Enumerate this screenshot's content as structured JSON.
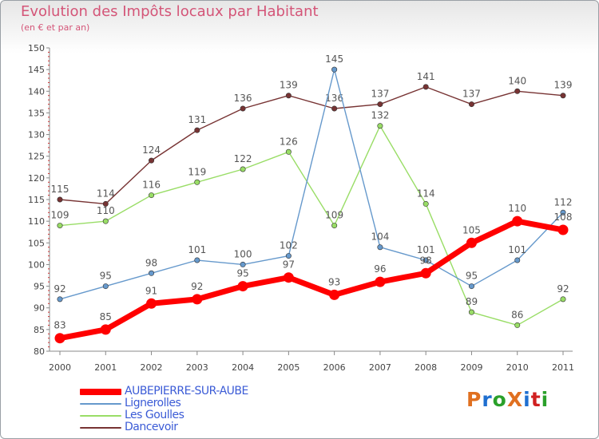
{
  "title": "Evolution des Impôts locaux par Habitant",
  "subtitle": "(en € et par an)",
  "logo_text": "ProXiti",
  "logo_colors": [
    "#e07020",
    "#1f6fd0",
    "#2aa02a",
    "#e07020",
    "#1f6fd0",
    "#d02020",
    "#2aa02a"
  ],
  "chart_data": {
    "type": "line",
    "title": "Evolution des Impôts locaux par Habitant",
    "ylabel": "(en € et par an)",
    "xlabel": "",
    "categories": [
      "2000",
      "2001",
      "2002",
      "2003",
      "2004",
      "2005",
      "2006",
      "2007",
      "2008",
      "2009",
      "2010",
      "2011"
    ],
    "ylim": [
      80,
      150
    ],
    "ytick_step": 5,
    "grid": false,
    "legend_position": "bottom-left",
    "series": [
      {
        "name": "AUBEPIERRE-SUR-AUBE",
        "color": "#ff0000",
        "values": [
          83,
          85,
          91,
          92,
          95,
          97,
          93,
          96,
          98,
          105,
          110,
          108
        ]
      },
      {
        "name": "Lignerolles",
        "color": "#6699cc",
        "values": [
          92,
          95,
          98,
          101,
          100,
          102,
          145,
          104,
          101,
          95,
          101,
          112
        ]
      },
      {
        "name": "Les Goulles",
        "color": "#99dd66",
        "values": [
          109,
          110,
          116,
          119,
          122,
          126,
          109,
          132,
          114,
          89,
          86,
          92
        ]
      },
      {
        "name": "Dancevoir",
        "color": "#773333",
        "values": [
          115,
          114,
          124,
          131,
          136,
          139,
          136,
          137,
          141,
          137,
          140,
          139
        ]
      }
    ]
  }
}
